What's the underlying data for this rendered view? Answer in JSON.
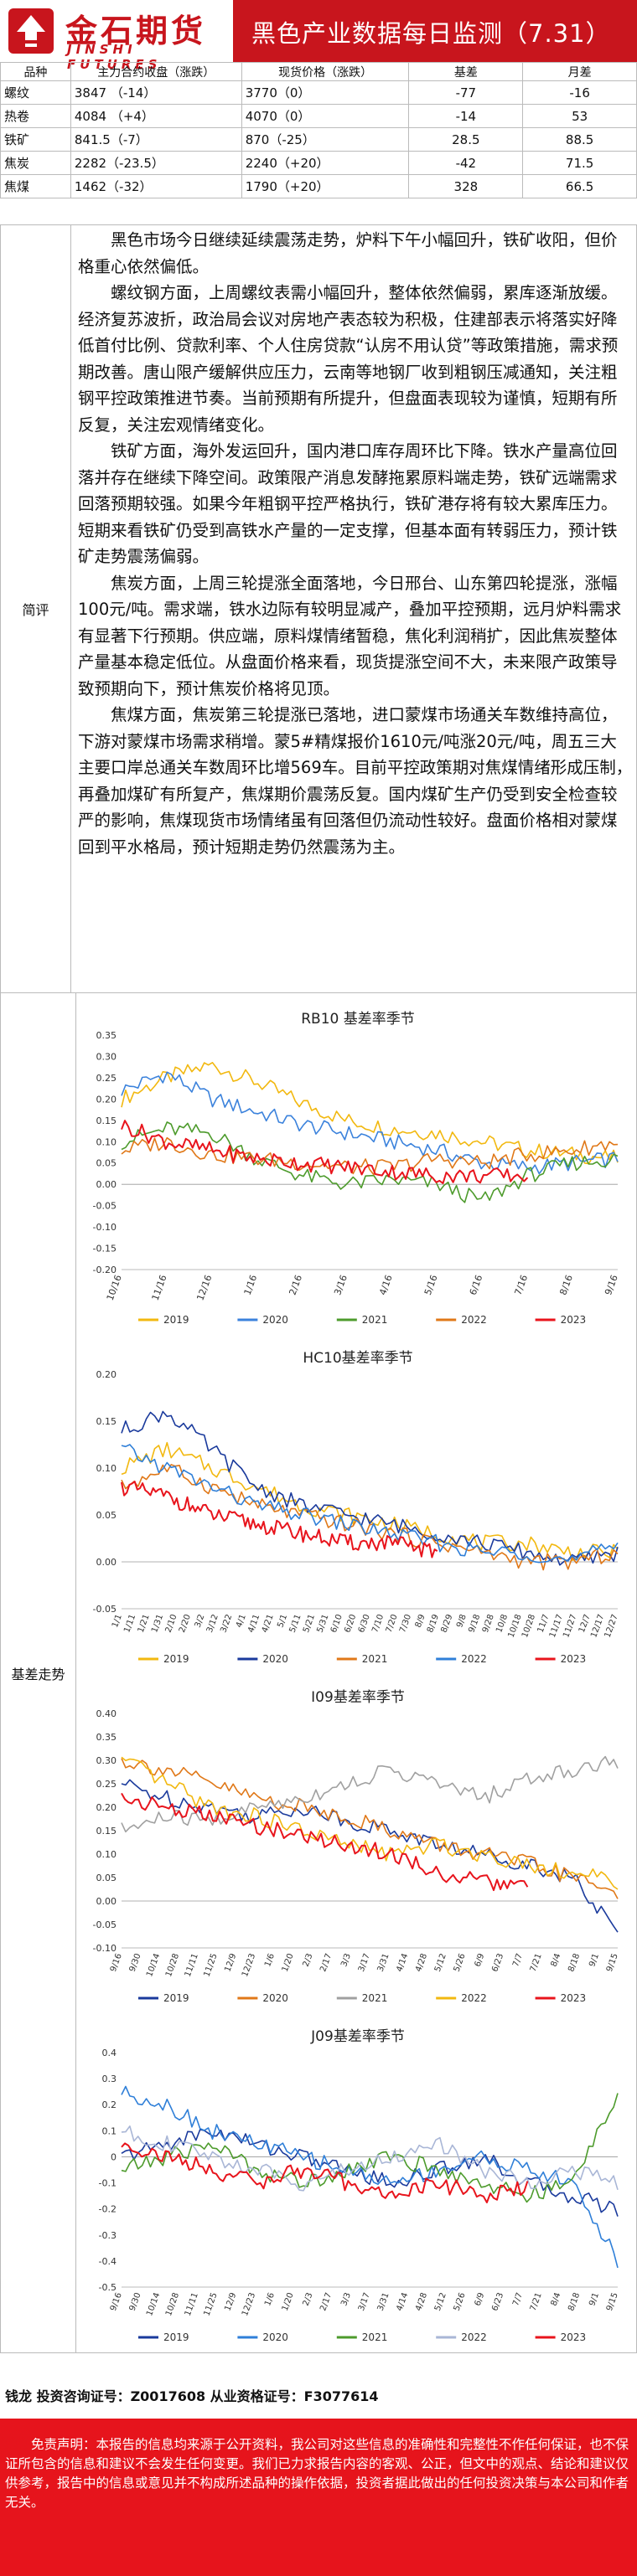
{
  "header": {
    "logo_cn": "金石期货",
    "logo_en": "JINSHI FUTURES",
    "title": "黑色产业数据每日监测（7.31）",
    "brand_color": "#c8151d"
  },
  "price_table": {
    "headers": [
      "品种",
      "主力合约收盘（涨跌）",
      "现货价格（涨跌）",
      "基差",
      "月差"
    ],
    "rows": [
      {
        "name": "螺纹",
        "futures": "3847 （-14）",
        "spot": "3770（0）",
        "basis": "-77",
        "spread": "-16"
      },
      {
        "name": "热卷",
        "futures": "4084 （+4）",
        "spot": "4070（0）",
        "basis": "-14",
        "spread": "53"
      },
      {
        "name": "铁矿",
        "futures": "841.5（-7）",
        "spot": "870（-25）",
        "basis": "28.5",
        "spread": "88.5"
      },
      {
        "name": "焦炭",
        "futures": "2282（-23.5）",
        "spot": "2240（+20）",
        "basis": "-42",
        "spread": "71.5"
      },
      {
        "name": "焦煤",
        "futures": "1462（-32）",
        "spot": "1790（+20）",
        "basis": "328",
        "spread": "66.5"
      }
    ]
  },
  "review": {
    "label": "简评",
    "paragraphs": [
      "黑色市场今日继续延续震荡走势，炉料下午小幅回升，铁矿收阳，但价格重心依然偏低。",
      "螺纹钢方面，上周螺纹表需小幅回升，整体依然偏弱，累库逐渐放缓。经济复苏波折，政治局会议对房地产表态较为积极，住建部表示将落实好降低首付比例、贷款利率、个人住房贷款“认房不用认贷”等政策措施，需求预期改善。唐山限产缓解供应压力，云南等地钢厂收到粗钢压减通知，关注粗钢平控政策推进节奏。当前预期有所提升，但盘面表现较为谨慎，短期有所反复，关注宏观情绪变化。",
      "铁矿方面，海外发运回升，国内港口库存周环比下降。铁水产量高位回落并存在继续下降空间。政策限产消息发酵拖累原料端走势，铁矿远端需求回落预期较强。如果今年粗钢平控严格执行，铁矿港存将有较大累库压力。短期来看铁矿仍受到高铁水产量的一定支撑，但基本面有转弱压力，预计铁矿走势震荡偏弱。",
      "焦炭方面，上周三轮提涨全面落地，今日邢台、山东第四轮提涨，涨幅100元/吨。需求端，铁水边际有较明显减产，叠加平控预期，远月炉料需求有显著下行预期。供应端，原料煤情绪暂稳，焦化利润稍扩，因此焦炭整体产量基本稳定低位。从盘面价格来看，现货提涨空间不大，未来限产政策导致预期向下，预计焦炭价格将见顶。",
      "焦煤方面，焦炭第三轮提涨已落地，进口蒙煤市场通关车数维持高位，下游对蒙煤市场需求稍增。蒙5#精煤报价1610元/吨涨20元/吨，周五三大主要口岸总通关车数周环比增569车。目前平控政策期对焦煤情绪形成压制，再叠加煤矿有所复产，焦煤期价震荡反复。国内煤矿生产仍受到安全检查较严的影响，焦煤现货市场情绪虽有回落但仍流动性较好。盘面价格相对蒙煤回到平水格局，预计短期走势仍然震荡为主。"
    ]
  },
  "basis_section": {
    "label": "基差走势"
  },
  "legend_colors": {
    "2019": "#f2b80f",
    "2020": "#3b82dc",
    "2021": "#4d9b2c",
    "2022": "#a0a0a0",
    "2023": "#e8141c",
    "2019_dark": "#f2b80f",
    "2020_dark": "#1a3a9c",
    "2021_orange": "#e07818",
    "2022_blue": "#2f7fd8",
    "2023_red": "#e8141c"
  },
  "chart_data": [
    {
      "type": "line",
      "title": "RB10 基差率季节",
      "ylim": [
        -0.2,
        0.35
      ],
      "yticks": [
        "0.35",
        "0.30",
        "0.25",
        "0.20",
        "0.15",
        "0.10",
        "0.05",
        "0.00",
        "-0.05",
        "-0.10",
        "-0.15",
        "-0.20"
      ],
      "x_ticks": [
        "10/16",
        "11/16",
        "12/16",
        "1/16",
        "2/16",
        "3/16",
        "4/16",
        "5/16",
        "6/16",
        "7/16",
        "8/16",
        "9/16"
      ],
      "series": [
        {
          "name": "2019",
          "color": "#f2b80f",
          "values": [
            0.2,
            0.25,
            0.28,
            0.24,
            0.19,
            0.15,
            0.13,
            0.12,
            0.1,
            0.08,
            0.07,
            0.06
          ]
        },
        {
          "name": "2020",
          "color": "#3b82dc",
          "values": [
            0.22,
            0.26,
            0.2,
            0.17,
            0.14,
            0.12,
            0.1,
            0.08,
            0.05,
            0.04,
            0.05,
            0.06
          ]
        },
        {
          "name": "2021",
          "color": "#4d9b2c",
          "values": [
            0.1,
            0.13,
            0.12,
            0.06,
            0.02,
            0.0,
            0.01,
            0.0,
            -0.04,
            0.02,
            0.05,
            0.06
          ]
        },
        {
          "name": "2022",
          "color": "#e07818",
          "values": [
            0.08,
            0.1,
            0.07,
            0.06,
            0.05,
            0.04,
            0.04,
            0.06,
            0.05,
            0.07,
            0.08,
            0.1
          ]
        },
        {
          "name": "2023",
          "color": "#e8141c",
          "values": [
            0.14,
            0.1,
            0.08,
            0.06,
            0.05,
            0.04,
            0.03,
            0.02,
            0.02,
            0.02
          ]
        }
      ]
    },
    {
      "type": "line",
      "title": "HC10基差率季节",
      "ylim": [
        -0.05,
        0.2
      ],
      "yticks": [
        "0.20",
        "0.15",
        "0.10",
        "0.05",
        "0.00",
        "-0.05"
      ],
      "x_ticks": [
        "1/1",
        "1/11",
        "1/21",
        "1/31",
        "2/10",
        "2/20",
        "3/2",
        "3/12",
        "3/22",
        "4/1",
        "4/11",
        "4/21",
        "5/1",
        "5/11",
        "5/21",
        "5/31",
        "6/10",
        "6/20",
        "6/30",
        "7/10",
        "7/20",
        "7/30",
        "8/9",
        "8/19",
        "8/29",
        "9/8",
        "9/18",
        "9/28",
        "10/8",
        "10/18",
        "10/28",
        "11/7",
        "11/17",
        "11/27",
        "12/7",
        "12/17",
        "12/27"
      ],
      "series": [
        {
          "name": "2019",
          "color": "#f2b80f",
          "values": [
            0.1,
            0.12,
            0.1,
            0.08,
            0.06,
            0.05,
            0.04,
            0.03,
            0.02,
            0.02,
            0.01,
            0.01
          ]
        },
        {
          "name": "2020",
          "color": "#1a3a9c",
          "values": [
            0.14,
            0.16,
            0.12,
            0.08,
            0.06,
            0.05,
            0.04,
            0.03,
            0.02,
            0.01,
            0.0,
            0.01
          ]
        },
        {
          "name": "2021",
          "color": "#e07818",
          "values": [
            0.08,
            0.1,
            0.08,
            0.06,
            0.05,
            0.04,
            0.03,
            0.02,
            0.01,
            0.0,
            0.0,
            0.01
          ]
        },
        {
          "name": "2022",
          "color": "#2f7fd8",
          "values": [
            0.12,
            0.1,
            0.08,
            0.06,
            0.05,
            0.04,
            0.03,
            0.02,
            0.01,
            0.01,
            0.0,
            0.02
          ]
        },
        {
          "name": "2023",
          "color": "#e8141c",
          "values": [
            0.08,
            0.07,
            0.05,
            0.04,
            0.03,
            0.02,
            0.02,
            0.01
          ]
        }
      ]
    },
    {
      "type": "line",
      "title": "I09基差率季节",
      "ylim": [
        -0.1,
        0.4
      ],
      "yticks": [
        "0.40",
        "0.35",
        "0.30",
        "0.25",
        "0.20",
        "0.15",
        "0.10",
        "0.05",
        "0.00",
        "-0.05",
        "-0.10"
      ],
      "x_ticks": [
        "9/16",
        "9/30",
        "10/14",
        "10/28",
        "11/11",
        "11/25",
        "12/9",
        "12/23",
        "1/6",
        "1/20",
        "2/3",
        "2/17",
        "3/3",
        "3/17",
        "3/31",
        "4/14",
        "4/28",
        "5/12",
        "5/26",
        "6/9",
        "6/23",
        "7/7",
        "7/21",
        "8/4",
        "8/18",
        "9/1",
        "9/15"
      ],
      "series": [
        {
          "name": "2019",
          "color": "#1a3a9c",
          "values": [
            0.25,
            0.22,
            0.2,
            0.18,
            0.2,
            0.17,
            0.15,
            0.12,
            0.1,
            0.08,
            0.05,
            -0.07
          ]
        },
        {
          "name": "2020",
          "color": "#e07818",
          "values": [
            0.3,
            0.28,
            0.25,
            0.22,
            0.2,
            0.18,
            0.15,
            0.12,
            0.1,
            0.08,
            0.05,
            0.02
          ]
        },
        {
          "name": "2021",
          "color": "#a0a0a0",
          "values": [
            0.15,
            0.18,
            0.17,
            0.2,
            0.22,
            0.25,
            0.28,
            0.25,
            0.22,
            0.26,
            0.28,
            0.3
          ]
        },
        {
          "name": "2022",
          "color": "#f2b80f",
          "values": [
            0.3,
            0.25,
            0.2,
            0.18,
            0.15,
            0.12,
            0.1,
            0.12,
            0.1,
            0.08,
            0.06,
            0.04
          ]
        },
        {
          "name": "2023",
          "color": "#e8141c",
          "values": [
            0.22,
            0.2,
            0.18,
            0.16,
            0.14,
            0.12,
            0.1,
            0.06,
            0.04,
            0.03
          ]
        }
      ]
    },
    {
      "type": "line",
      "title": "J09基差率季节",
      "ylim": [
        -0.5,
        0.4
      ],
      "yticks": [
        "0.4",
        "0.3",
        "0.2",
        "0.1",
        "0",
        "-0.1",
        "-0.2",
        "-0.3",
        "-0.4",
        "-0.5"
      ],
      "x_ticks": [
        "9/16",
        "9/30",
        "10/14",
        "10/28",
        "11/11",
        "11/25",
        "12/9",
        "12/23",
        "1/6",
        "1/20",
        "2/3",
        "2/17",
        "3/3",
        "3/17",
        "3/31",
        "4/14",
        "4/28",
        "5/12",
        "5/26",
        "6/9",
        "6/23",
        "7/7",
        "7/21",
        "8/4",
        "8/18",
        "9/1",
        "9/15"
      ],
      "series": [
        {
          "name": "2019",
          "color": "#1a3a9c",
          "values": [
            0.0,
            0.05,
            0.1,
            0.05,
            0.0,
            -0.05,
            -0.1,
            -0.05,
            0.0,
            -0.1,
            -0.15,
            -0.2
          ]
        },
        {
          "name": "2020",
          "color": "#2f7fd8",
          "values": [
            0.25,
            0.2,
            0.1,
            0.05,
            0.0,
            -0.05,
            -0.1,
            -0.05,
            0.0,
            -0.05,
            -0.1,
            -0.4
          ]
        },
        {
          "name": "2021",
          "color": "#4d9b2c",
          "values": [
            -0.05,
            0.0,
            0.05,
            -0.05,
            -0.1,
            -0.05,
            0.0,
            -0.05,
            -0.1,
            -0.15,
            -0.1,
            0.25
          ]
        },
        {
          "name": "2022",
          "color": "#a9b6d6",
          "values": [
            0.1,
            0.05,
            0.0,
            -0.05,
            -0.1,
            -0.05,
            0.0,
            0.05,
            -0.05,
            -0.1,
            -0.05,
            -0.1
          ]
        },
        {
          "name": "2023",
          "color": "#e8141c",
          "values": [
            0.05,
            0.0,
            -0.05,
            -0.1,
            -0.05,
            -0.1,
            -0.15,
            -0.1,
            -0.15,
            -0.12
          ]
        }
      ]
    }
  ],
  "analyst": "钱龙 投资咨询证号：Z0017608 从业资格证号：F3077614",
  "disclaimer": "免责声明：本报告的信息均来源于公开资料，我公司对这些信息的准确性和完整性不作任何保证，也不保证所包含的信息和建议不会发生任何变更。我们已力求报告内容的客观、公正，但文中的观点、结论和建议仅供参考，报告中的信息或意见并不构成所述品种的操作依据，投资者据此做出的任何投资决策与本公司和作者无关。"
}
